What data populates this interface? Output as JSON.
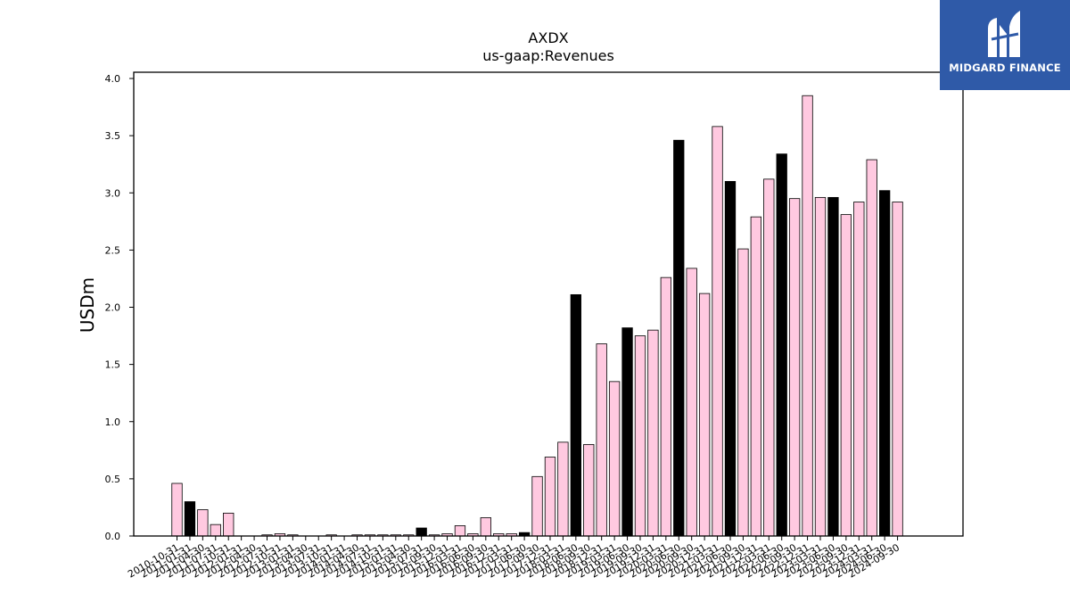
{
  "logo": {
    "text": "MIDGARD FINANCE",
    "background": "#2f5aa8"
  },
  "chart_data": {
    "type": "bar",
    "title": "AXDX",
    "subtitle": "us-gaap:Revenues",
    "xlabel": "",
    "ylabel": "USDm",
    "ylim": [
      0,
      4.05
    ],
    "yticks": [
      "0.0",
      "0.5",
      "1.0",
      "1.5",
      "2.0",
      "2.5",
      "3.0",
      "3.5",
      "4.0"
    ],
    "colors": {
      "quarter": "#ffc9e0",
      "annual": "#000000"
    },
    "categories": [
      "2010-10-31",
      "2011-01-31",
      "2011-04-30",
      "2011-07-31",
      "2011-10-31",
      "2012-01-31",
      "2012-04-30",
      "2012-07-31",
      "2012-10-31",
      "2013-01-31",
      "2013-04-30",
      "2013-07-31",
      "2013-10-31",
      "2014-01-31",
      "2014-04-30",
      "2014-07-31",
      "2014-10-31",
      "2015-01-31",
      "2015-04-30",
      "2015-07-31",
      "2015-09-30",
      "2015-12-31",
      "2016-03-31",
      "2016-06-30",
      "2016-09-30",
      "2016-12-31",
      "2017-03-31",
      "2017-06-30",
      "2017-09-30",
      "2017-12-31",
      "2018-03-31",
      "2018-06-30",
      "2018-09-30",
      "2018-12-31",
      "2019-03-31",
      "2019-06-30",
      "2019-09-30",
      "2019-12-31",
      "2020-03-31",
      "2020-06-30",
      "2020-09-30",
      "2020-12-31",
      "2021-03-31",
      "2021-06-30",
      "2021-09-30",
      "2021-12-31",
      "2022-03-31",
      "2022-06-30",
      "2022-09-30",
      "2022-12-31",
      "2023-03-31",
      "2023-06-30",
      "2023-09-30",
      "2023-12-31",
      "2024-03-31",
      "2024-06-30",
      "2024-09-30"
    ],
    "values": [
      0.46,
      0.3,
      0.23,
      0.1,
      0.2,
      0.0,
      0.0,
      0.01,
      0.02,
      0.01,
      0.0,
      0.0,
      0.01,
      0.0,
      0.01,
      0.01,
      0.01,
      0.01,
      0.01,
      0.07,
      0.01,
      0.02,
      0.09,
      0.02,
      0.16,
      0.02,
      0.02,
      0.03,
      0.52,
      0.69,
      0.82,
      2.11,
      0.8,
      1.68,
      1.35,
      1.82,
      1.75,
      1.8,
      2.26,
      3.46,
      2.34,
      2.12,
      3.58,
      3.1,
      2.51,
      2.79,
      3.12,
      3.34,
      2.95,
      3.85,
      2.96,
      2.96,
      2.81,
      2.92,
      3.29,
      3.02,
      2.92
    ],
    "annual_flags": [
      0,
      1,
      0,
      0,
      0,
      0,
      0,
      0,
      0,
      0,
      0,
      0,
      0,
      0,
      0,
      0,
      0,
      0,
      0,
      1,
      0,
      0,
      0,
      0,
      0,
      0,
      0,
      1,
      0,
      0,
      0,
      1,
      0,
      0,
      0,
      1,
      0,
      0,
      0,
      1,
      0,
      0,
      0,
      1,
      0,
      0,
      0,
      1,
      0,
      0,
      0,
      1,
      0,
      0,
      0,
      1,
      0
    ]
  }
}
